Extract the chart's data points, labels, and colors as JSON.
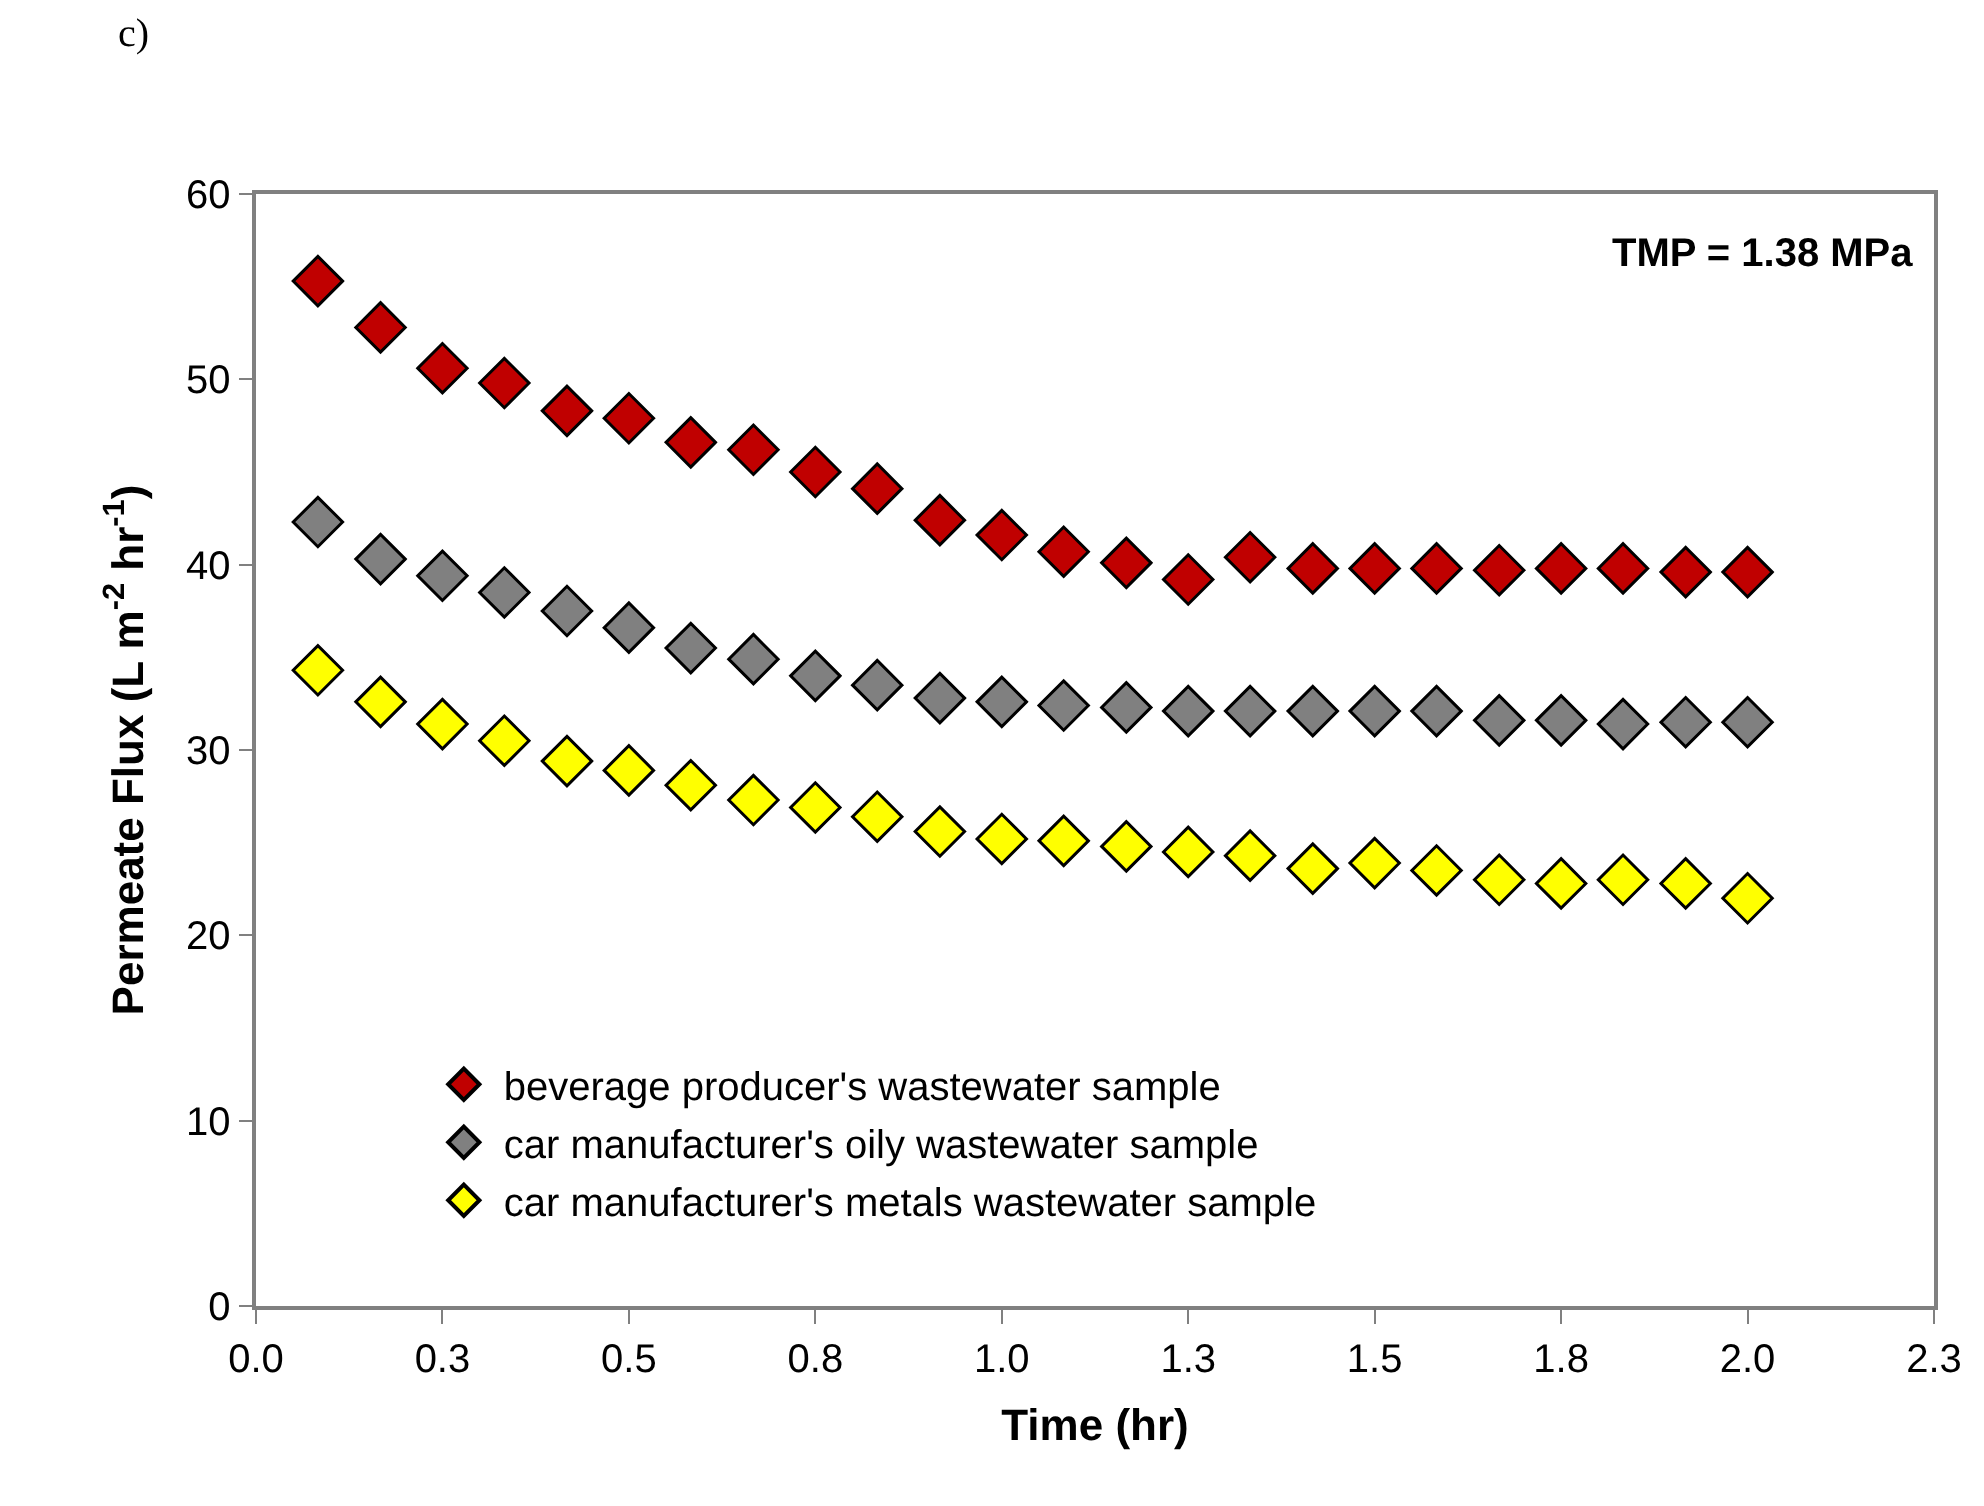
{
  "chart_data": {
    "type": "scatter",
    "xlabel": "Time (hr)",
    "ylabel": "Permeate Flux (L m$^{-2}$ hr$^{-1}$)",
    "x": [
      0.083,
      0.167,
      0.25,
      0.333,
      0.417,
      0.5,
      0.583,
      0.667,
      0.75,
      0.833,
      0.917,
      1.0,
      1.083,
      1.167,
      1.25,
      1.333,
      1.417,
      1.5,
      1.583,
      1.667,
      1.75,
      1.833,
      1.917,
      2.0
    ],
    "series": [
      {
        "name": "beverage producer's wastewater sample",
        "color": "#c00000",
        "values": [
          55.3,
          52.8,
          50.6,
          49.8,
          48.3,
          47.9,
          46.6,
          46.2,
          45.0,
          44.1,
          42.4,
          41.6,
          40.7,
          40.1,
          39.2,
          40.4,
          39.8,
          39.8,
          39.8,
          39.7,
          39.8,
          39.8,
          39.6,
          39.6
        ]
      },
      {
        "name": "car manufacturer's oily wastewater sample",
        "color": "#808080",
        "values": [
          42.3,
          40.3,
          39.4,
          38.5,
          37.5,
          36.6,
          35.5,
          34.9,
          34.0,
          33.5,
          32.8,
          32.6,
          32.4,
          32.3,
          32.1,
          32.1,
          32.1,
          32.1,
          32.1,
          31.6,
          31.6,
          31.4,
          31.5,
          31.5
        ]
      },
      {
        "name": "car manufacturer's metals wastewater sample",
        "color": "#ffff00",
        "values": [
          34.3,
          32.6,
          31.4,
          30.5,
          29.4,
          28.9,
          28.1,
          27.3,
          26.9,
          26.4,
          25.6,
          25.2,
          25.1,
          24.8,
          24.5,
          24.3,
          23.6,
          23.9,
          23.5,
          23.0,
          22.8,
          23.0,
          22.8,
          22.0
        ]
      }
    ],
    "xlim": [
      0,
      2.25
    ],
    "xticks": [
      {
        "value": 0,
        "label": "0.0"
      },
      {
        "value": 0.25,
        "label": "0.3"
      },
      {
        "value": 0.5,
        "label": "0.5"
      },
      {
        "value": 0.75,
        "label": "0.8"
      },
      {
        "value": 1.0,
        "label": "1.0"
      },
      {
        "value": 1.25,
        "label": "1.3"
      },
      {
        "value": 1.5,
        "label": "1.5"
      },
      {
        "value": 1.75,
        "label": "1.8"
      },
      {
        "value": 2.0,
        "label": "2.0"
      },
      {
        "value": 2.25,
        "label": "2.3"
      }
    ],
    "ylim": [
      0,
      60
    ],
    "yticks": [
      0,
      10,
      20,
      30,
      40,
      50,
      60
    ],
    "grid": false,
    "legend": "bottom left",
    "marker": "diamond",
    "annotations": [
      "TMP = 1.38 MPa",
      "c)"
    ]
  }
}
